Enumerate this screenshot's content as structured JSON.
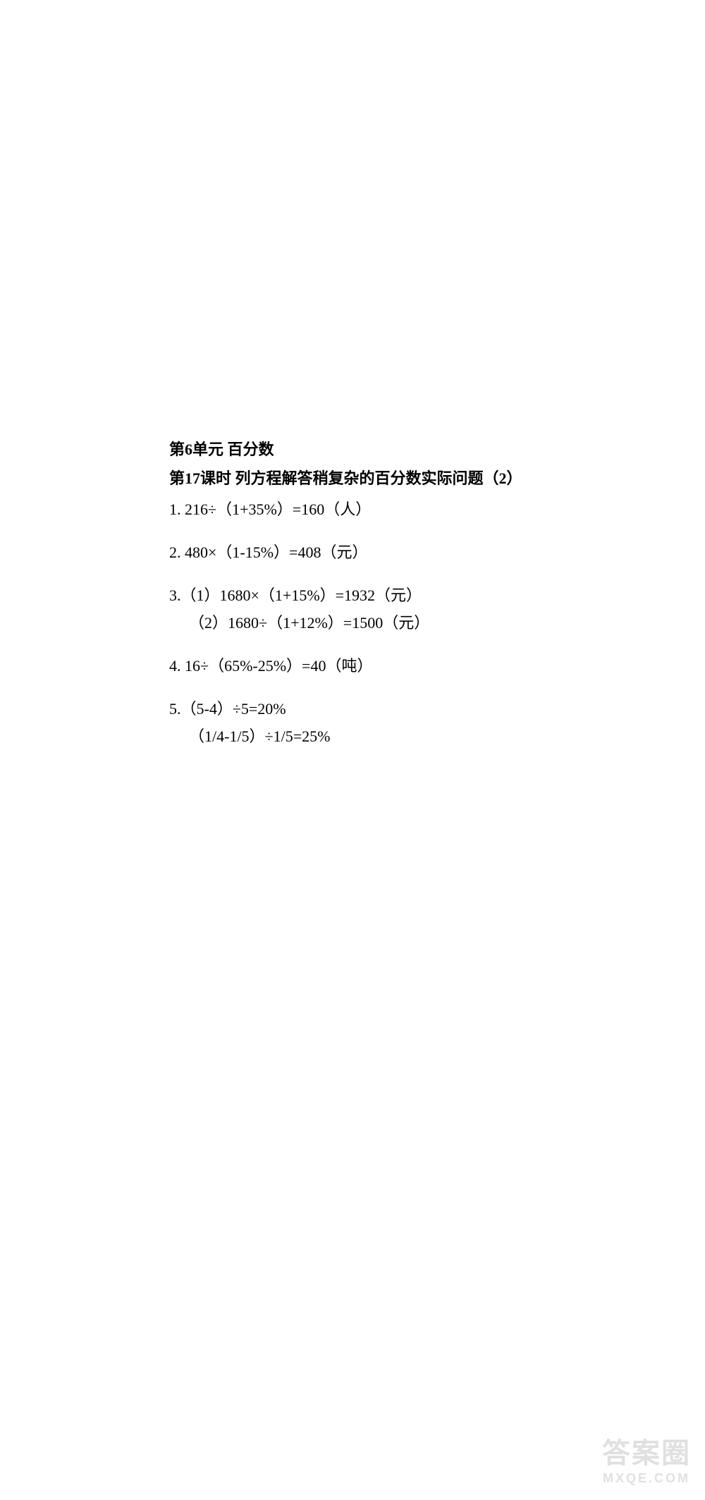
{
  "heading": "第6单元  百分数",
  "subheading": "第17课时  列方程解答稍复杂的百分数实际问题（2）",
  "problems": [
    {
      "lines": [
        "1.  216÷（1+35%）=160（人）"
      ]
    },
    {
      "lines": [
        "2.  480×（1-15%）=408（元）"
      ]
    },
    {
      "lines": [
        "3.（1）1680×（1+15%）=1932（元）",
        "（2）1680÷（1+12%）=1500（元）"
      ],
      "indentSecond": true
    },
    {
      "lines": [
        "4. 16÷（65%-25%）=40（吨）"
      ]
    },
    {
      "lines": [
        "5.（5-4）÷5=20%",
        "（1/4-1/5）÷1/5=25%"
      ],
      "indentSecond": true
    }
  ],
  "watermark": {
    "top": "答案圈",
    "bottom": "MXQE.COM"
  }
}
